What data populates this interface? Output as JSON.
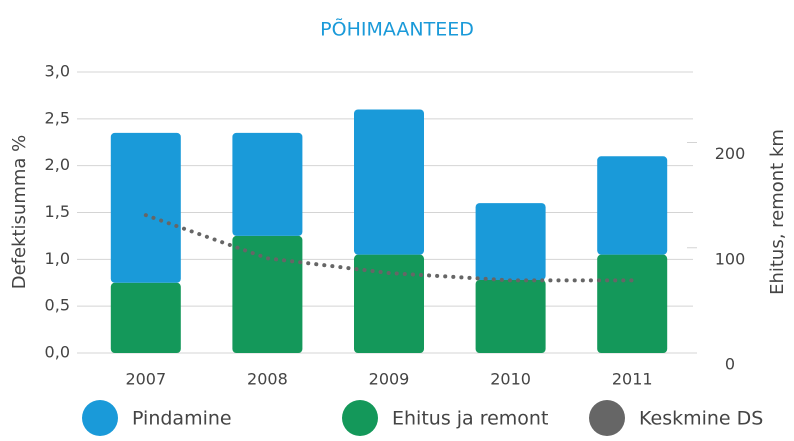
{
  "chart_data": {
    "type": "bar",
    "title": "PÕHIMAANTEED",
    "ylabel": "Defektisumma %",
    "y2label": "Ehitus, remont km",
    "categories": [
      "2007",
      "2008",
      "2009",
      "2010",
      "2011"
    ],
    "stacked": true,
    "series": [
      {
        "name": "Pindamine",
        "color": "#1a9ad9",
        "values": [
          1.6,
          1.1,
          1.55,
          0.82,
          1.05
        ],
        "stack_order": 1
      },
      {
        "name": "Ehitus ja remont",
        "color": "#14985a",
        "values": [
          0.75,
          1.25,
          1.05,
          0.78,
          1.05
        ],
        "stack_order": 0
      },
      {
        "name": "Keskmine DS",
        "color": "#666666",
        "type": "line",
        "axis": "y2",
        "values": [
          131,
          90,
          76,
          69,
          69
        ]
      }
    ],
    "ylim": [
      0,
      3.0
    ],
    "yticks": [
      {
        "value": 0,
        "label": "0,0"
      },
      {
        "value": 0.5,
        "label": "0,5"
      },
      {
        "value": 1.0,
        "label": "1,0"
      },
      {
        "value": 1.5,
        "label": "1,5"
      },
      {
        "value": 2.0,
        "label": "2,0"
      },
      {
        "value": 2.5,
        "label": "2,5"
      },
      {
        "value": 3.0,
        "label": "3,0"
      }
    ],
    "y2lim": [
      0,
      267
    ],
    "y2ticks": [
      0,
      100,
      200
    ],
    "grid": true,
    "legend": "bottom"
  }
}
